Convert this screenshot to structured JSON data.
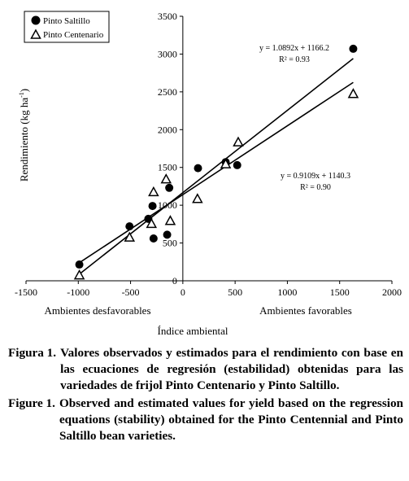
{
  "chart_data": {
    "type": "scatter",
    "xlabel": "Índice ambiental",
    "ylabel": "Rendimiento (kg ha",
    "ylabel_sup": "-1",
    "ylabel_close": ")",
    "xlim": [
      -1500,
      2000
    ],
    "ylim": [
      0,
      3500
    ],
    "x_ticks": [
      -1500,
      -1000,
      -500,
      0,
      500,
      1000,
      1500,
      2000
    ],
    "y_ticks": [
      0,
      500,
      1000,
      1500,
      2000,
      2500,
      3000,
      3500
    ],
    "legend_position": "top-left",
    "region_labels": {
      "left": "Ambientes desfavorables",
      "right": "Ambientes favorables"
    },
    "series": [
      {
        "name": "Pinto Saltillo",
        "marker": "filled-circle",
        "points": [
          [
            -990,
            215
          ],
          [
            -510,
            720
          ],
          [
            -330,
            820
          ],
          [
            -290,
            990
          ],
          [
            -280,
            560
          ],
          [
            -150,
            610
          ],
          [
            -130,
            1230
          ],
          [
            145,
            1490
          ],
          [
            410,
            1570
          ],
          [
            520,
            1530
          ],
          [
            1630,
            3070
          ]
        ],
        "fit": {
          "slope": 1.0892,
          "intercept": 1166.2,
          "x_range": [
            -990,
            1630
          ],
          "equation": "y = 1.0892x + 1166.2",
          "r2": "R² = 0.93"
        }
      },
      {
        "name": "Pinto Centenario",
        "marker": "open-triangle",
        "points": [
          [
            -990,
            80
          ],
          [
            -510,
            580
          ],
          [
            -300,
            760
          ],
          [
            -280,
            1180
          ],
          [
            -160,
            1350
          ],
          [
            -120,
            800
          ],
          [
            140,
            1090
          ],
          [
            410,
            1550
          ],
          [
            530,
            1840
          ],
          [
            1630,
            2480
          ]
        ],
        "fit": {
          "slope": 0.9109,
          "intercept": 1140.3,
          "x_range": [
            -990,
            1630
          ],
          "equation": "y = 0.9109x + 1140.3",
          "r2": "R² = 0.90"
        }
      }
    ]
  },
  "captions": [
    {
      "label": "Figura 1.",
      "text": "Valores observados y estimados para el rendimiento con base en las ecuaciones de regresión (estabilidad) obtenidas para las variedades de frijol Pinto Centenario y Pinto Saltillo."
    },
    {
      "label": "Figure 1.",
      "text": "Observed and estimated values for yield based on the regression equations (stability) obtained for the Pinto Centennial and Pinto Saltillo bean varieties."
    }
  ],
  "colors": {
    "ink": "#000000",
    "background": "#ffffff"
  }
}
